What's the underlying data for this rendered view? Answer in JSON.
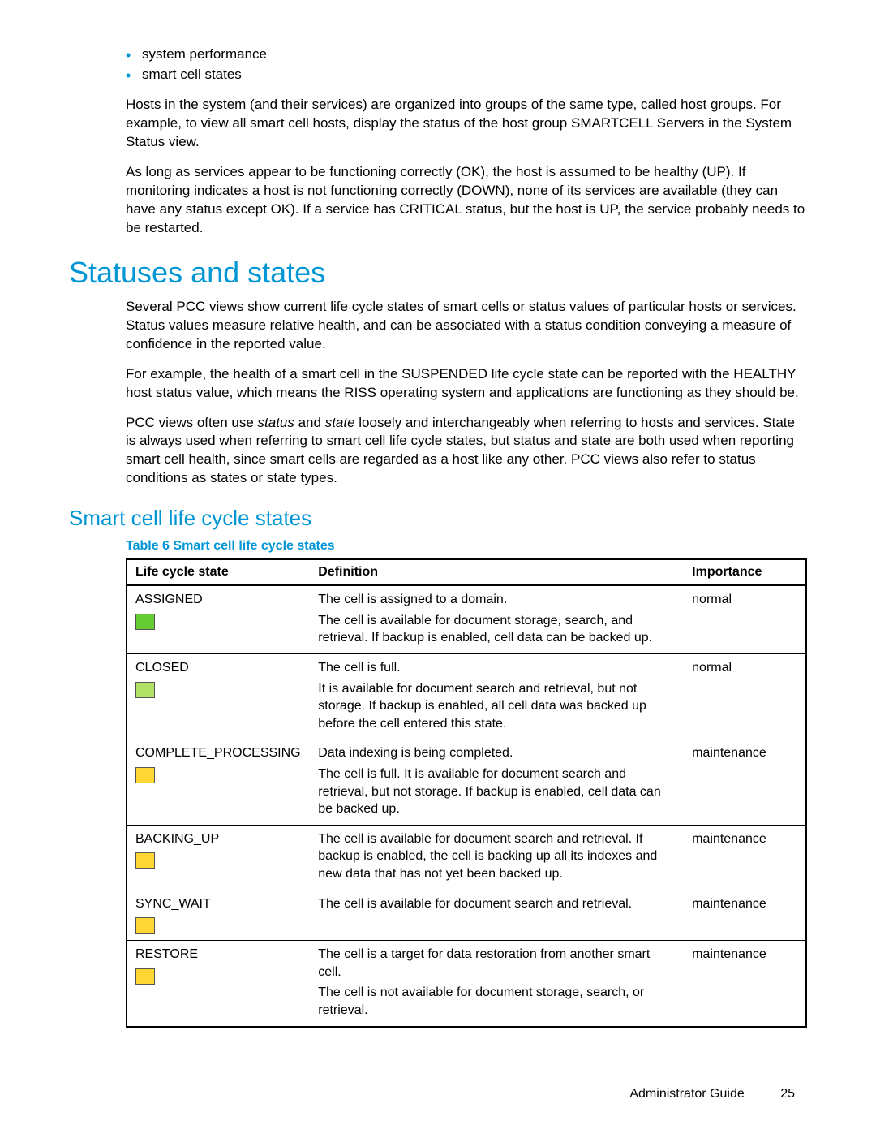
{
  "bullets": [
    "system performance",
    "smart cell states"
  ],
  "paragraphs": {
    "p1": "Hosts in the system (and their services) are organized into groups of the same type, called host groups. For example, to view all smart cell hosts, display the status of the host group SMARTCELL Servers in the System Status view.",
    "p2": "As long as services appear to be functioning correctly (OK), the host is assumed to be healthy (UP). If monitoring indicates a host is not functioning correctly (DOWN), none of its services are available (they can have any status except OK). If a service has CRITICAL status, but the host is UP, the service probably needs to be restarted.",
    "p3": "Several PCC views show current life cycle states of smart cells or status values of particular hosts or services. Status values measure relative health, and can be associated with a status condition conveying a measure of confidence in the reported value.",
    "p4": "For example, the health of a smart cell in the SUSPENDED life cycle state can be reported with the HEALTHY host status value, which means the RISS operating system and applications are functioning as they should be.",
    "p5_a": "PCC views often use ",
    "p5_i1": "status",
    "p5_b": " and ",
    "p5_i2": "state",
    "p5_c": " loosely and interchangeably when referring to hosts and services. State is always used when referring to smart cell life cycle states, but status and state are both used when reporting smart cell health, since smart cells are regarded as a host like any other. PCC views also refer to status conditions as states or state types."
  },
  "headings": {
    "h1": "Statuses and states",
    "h2": "Smart cell life cycle states",
    "table_caption": "Table 6 Smart cell life cycle states"
  },
  "table": {
    "headers": {
      "state": "Life cycle state",
      "definition": "Definition",
      "importance": "Importance"
    },
    "col_widths": {
      "state": "27%",
      "definition": "55%",
      "importance": "18%"
    },
    "rows": [
      {
        "state": "ASSIGNED",
        "color": "#66cc33",
        "definition": [
          "The cell is assigned to a domain.",
          "The cell is available for document storage, search, and retrieval. If backup is enabled, cell data can be backed up."
        ],
        "importance": "normal"
      },
      {
        "state": "CLOSED",
        "color": "#b3e066",
        "definition": [
          "The cell is full.",
          "It is available for document search and retrieval, but not storage. If backup is enabled, all cell data was backed up before the cell entered this state."
        ],
        "importance": "normal"
      },
      {
        "state": "COMPLETE_PROCESSING",
        "color": "#ffd633",
        "definition": [
          "Data indexing is being completed.",
          "The cell is full. It is available for document search and retrieval, but not storage. If backup is enabled, cell data can be backed up."
        ],
        "importance": "maintenance"
      },
      {
        "state": "BACKING_UP",
        "color": "#ffd633",
        "definition": [
          "The cell is available for document search and retrieval. If backup is enabled, the cell is backing up all its indexes and new data that has not yet been backed up."
        ],
        "importance": "maintenance"
      },
      {
        "state": "SYNC_WAIT",
        "color": "#ffd633",
        "definition": [
          "The cell is available for document search and retrieval."
        ],
        "importance": "maintenance"
      },
      {
        "state": "RESTORE",
        "color": "#ffd633",
        "definition": [
          "The cell is a target for data restoration from another smart cell.",
          "The cell is not available for document storage, search, or retrieval."
        ],
        "importance": "maintenance"
      }
    ]
  },
  "footer": {
    "title": "Administrator Guide",
    "page": "25"
  }
}
